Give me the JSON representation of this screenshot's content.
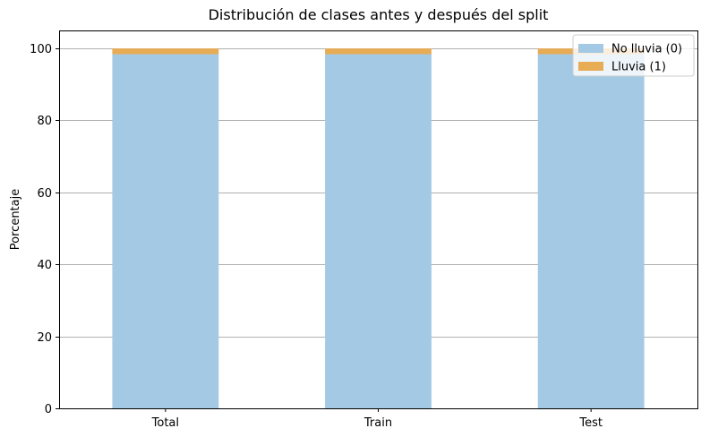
{
  "chart_data": {
    "type": "bar",
    "stacked": true,
    "title": "Distribución de clases antes y después del split",
    "xlabel": "",
    "ylabel": "Porcentaje",
    "categories": [
      "Total",
      "Train",
      "Test"
    ],
    "series": [
      {
        "name": "No lluvia (0)",
        "values": [
          98.4,
          98.4,
          98.4
        ],
        "color": "#a3c9e4"
      },
      {
        "name": "Lluvia (1)",
        "values": [
          1.6,
          1.6,
          1.6
        ],
        "color": "#e8ac55"
      }
    ],
    "ylim": [
      0,
      105
    ],
    "yticks": [
      0,
      20,
      40,
      60,
      80,
      100
    ],
    "grid": "y",
    "legend": "top-right"
  }
}
